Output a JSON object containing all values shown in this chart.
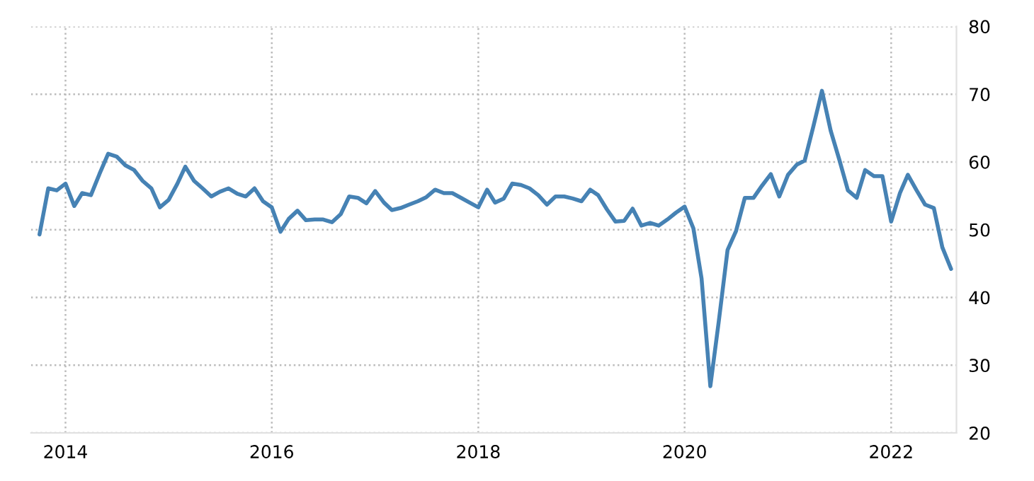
{
  "chart_data": {
    "type": "line",
    "x": [
      "2013-10",
      "2013-11",
      "2013-12",
      "2014-01",
      "2014-02",
      "2014-03",
      "2014-04",
      "2014-05",
      "2014-06",
      "2014-07",
      "2014-08",
      "2014-09",
      "2014-10",
      "2014-11",
      "2014-12",
      "2015-01",
      "2015-02",
      "2015-03",
      "2015-04",
      "2015-05",
      "2015-06",
      "2015-07",
      "2015-08",
      "2015-09",
      "2015-10",
      "2015-11",
      "2015-12",
      "2016-01",
      "2016-02",
      "2016-03",
      "2016-04",
      "2016-05",
      "2016-06",
      "2016-07",
      "2016-08",
      "2016-09",
      "2016-10",
      "2016-11",
      "2016-12",
      "2017-01",
      "2017-02",
      "2017-03",
      "2017-04",
      "2017-05",
      "2017-06",
      "2017-07",
      "2017-08",
      "2017-09",
      "2017-10",
      "2017-11",
      "2017-12",
      "2018-01",
      "2018-02",
      "2018-03",
      "2018-04",
      "2018-05",
      "2018-06",
      "2018-07",
      "2018-08",
      "2018-09",
      "2018-10",
      "2018-11",
      "2018-12",
      "2019-01",
      "2019-02",
      "2019-03",
      "2019-04",
      "2019-05",
      "2019-06",
      "2019-07",
      "2019-08",
      "2019-09",
      "2019-10",
      "2019-11",
      "2019-12",
      "2020-01",
      "2020-02",
      "2020-03",
      "2020-04",
      "2020-05",
      "2020-06",
      "2020-07",
      "2020-08",
      "2020-09",
      "2020-10",
      "2020-11",
      "2020-12",
      "2021-01",
      "2021-02",
      "2021-03",
      "2021-04",
      "2021-05",
      "2021-06",
      "2021-07",
      "2021-08",
      "2021-09",
      "2021-10",
      "2021-11",
      "2021-12",
      "2022-01",
      "2022-02",
      "2022-03",
      "2022-04",
      "2022-05",
      "2022-06",
      "2022-07",
      "2022-08"
    ],
    "series": [
      {
        "color": "#4682b4",
        "values": [
          49.3,
          56.1,
          55.8,
          56.8,
          53.5,
          55.4,
          55.1,
          58.2,
          61.2,
          60.8,
          59.5,
          58.8,
          57.2,
          56.1,
          53.3,
          54.4,
          56.8,
          59.3,
          57.2,
          56.1,
          54.9,
          55.6,
          56.1,
          55.3,
          54.9,
          56.1,
          54.2,
          53.3,
          49.7,
          51.6,
          52.8,
          51.4,
          51.5,
          51.5,
          51.1,
          52.3,
          54.9,
          54.7,
          53.9,
          55.7,
          54.0,
          52.9,
          53.2,
          53.7,
          54.2,
          54.8,
          55.9,
          55.4,
          55.4,
          54.7,
          54.0,
          53.3,
          55.9,
          54.0,
          54.6,
          56.8,
          56.6,
          56.1,
          55.1,
          53.7,
          54.9,
          54.9,
          54.6,
          54.2,
          55.9,
          55.1,
          53.0,
          51.2,
          51.3,
          53.1,
          50.6,
          51.0,
          50.6,
          51.5,
          52.5,
          53.4,
          50.2,
          42.8,
          26.9,
          36.5,
          47.0,
          49.8,
          54.7,
          54.7,
          56.5,
          58.2,
          54.9,
          58.1,
          59.6,
          60.2,
          65.3,
          70.5,
          64.6,
          60.4,
          55.8,
          54.7,
          58.8,
          57.9,
          57.9,
          51.2,
          55.4,
          58.1,
          55.8,
          53.7,
          53.2,
          47.4,
          44.2
        ]
      }
    ],
    "xlim": [
      "2013-09-01",
      "2022-08-20"
    ],
    "xticks": [
      "2014",
      "2016",
      "2018",
      "2020",
      "2022"
    ],
    "ylim": [
      20,
      80
    ],
    "yticks": [
      20,
      30,
      40,
      50,
      60,
      70,
      80
    ],
    "grid": true,
    "line_style": "solid",
    "marker": "none"
  }
}
